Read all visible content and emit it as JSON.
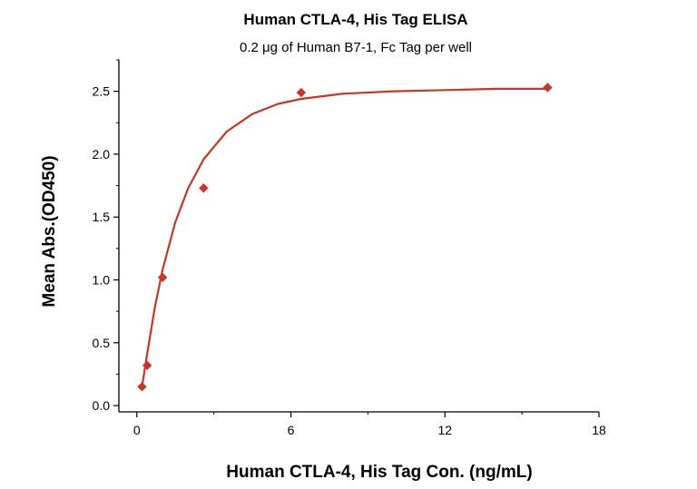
{
  "chart_data": {
    "type": "scatter",
    "title": "Human CTLA-4, His Tag ELISA",
    "subtitle": "0.2 μg of Human B7-1, Fc Tag per well",
    "xlabel": "Human CTLA-4, His Tag Con. (ng/mL)",
    "ylabel": "Mean Abs.(OD450)",
    "xlim": [
      -0.7,
      18
    ],
    "ylim": [
      -0.05,
      2.75
    ],
    "xticks": [
      0,
      6,
      12,
      18
    ],
    "yticks": [
      0.0,
      0.5,
      1.0,
      1.5,
      2.0,
      2.5
    ],
    "xtick_labels": [
      "0",
      "6",
      "12",
      "18"
    ],
    "ytick_labels": [
      "0.0",
      "0.5",
      "1.0",
      "1.5",
      "2.0",
      "2.5"
    ],
    "series": [
      {
        "type": "scatter",
        "marker": "diamond",
        "x": [
          0.2,
          0.4,
          1.0,
          2.6,
          6.4,
          16.0
        ],
        "y": [
          0.15,
          0.32,
          1.02,
          1.73,
          2.49,
          2.53
        ]
      },
      {
        "type": "line",
        "x": [
          0.2,
          0.4,
          0.7,
          1.0,
          1.5,
          2.0,
          2.6,
          3.5,
          4.5,
          5.5,
          6.4,
          8.0,
          10.0,
          12.0,
          14.0,
          16.0
        ],
        "y": [
          0.15,
          0.41,
          0.78,
          1.08,
          1.46,
          1.73,
          1.96,
          2.18,
          2.32,
          2.4,
          2.44,
          2.48,
          2.5,
          2.51,
          2.52,
          2.52
        ]
      }
    ],
    "colors": {
      "series": "#c0392b",
      "marker": "#c0392b",
      "axis": "#000000"
    },
    "grid": false,
    "legend": "none"
  }
}
